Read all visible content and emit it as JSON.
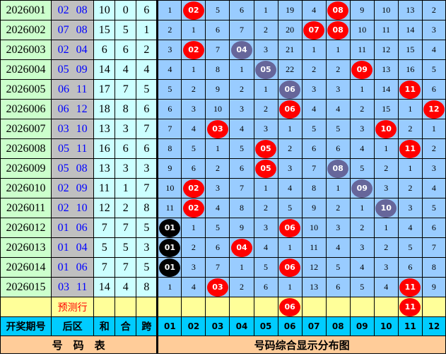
{
  "colors": {
    "red": "#ff0000",
    "gray": "#66669a",
    "black": "#000000"
  },
  "rows": [
    {
      "period": "2026001",
      "back": "02 08",
      "sum": "10",
      "he": "0",
      "kua": "6",
      "cells": [
        "1",
        {
          "n": "02",
          "c": "red"
        },
        "5",
        "6",
        "1",
        "19",
        "4",
        {
          "n": "08",
          "c": "red"
        },
        "9",
        "10",
        "13",
        "2"
      ]
    },
    {
      "period": "2026002",
      "back": "07 08",
      "sum": "15",
      "he": "5",
      "kua": "1",
      "cells": [
        "2",
        "1",
        "6",
        "7",
        "2",
        "20",
        {
          "n": "07",
          "c": "red"
        },
        {
          "n": "08",
          "c": "red"
        },
        "10",
        "11",
        "14",
        "3"
      ]
    },
    {
      "period": "2026003",
      "back": "02 04",
      "sum": "6",
      "he": "6",
      "kua": "2",
      "cells": [
        "3",
        {
          "n": "02",
          "c": "red"
        },
        "7",
        {
          "n": "04",
          "c": "gray"
        },
        "3",
        "21",
        "1",
        "1",
        "11",
        "12",
        "15",
        "4"
      ]
    },
    {
      "period": "2026004",
      "back": "05 09",
      "sum": "14",
      "he": "4",
      "kua": "4",
      "cells": [
        "4",
        "1",
        "8",
        "1",
        {
          "n": "05",
          "c": "gray"
        },
        "22",
        "2",
        "2",
        {
          "n": "09",
          "c": "red"
        },
        "13",
        "16",
        "5"
      ]
    },
    {
      "period": "2026005",
      "back": "06 11",
      "sum": "17",
      "he": "7",
      "kua": "5",
      "cells": [
        "5",
        "2",
        "9",
        "2",
        "1",
        {
          "n": "06",
          "c": "gray"
        },
        "3",
        "3",
        "1",
        "14",
        {
          "n": "11",
          "c": "red"
        },
        "6"
      ]
    },
    {
      "period": "2026006",
      "back": "06 12",
      "sum": "18",
      "he": "8",
      "kua": "6",
      "cells": [
        "6",
        "3",
        "10",
        "3",
        "2",
        {
          "n": "06",
          "c": "red"
        },
        "4",
        "4",
        "2",
        "15",
        "1",
        {
          "n": "12",
          "c": "red"
        }
      ]
    },
    {
      "period": "2026007",
      "back": "03 10",
      "sum": "13",
      "he": "3",
      "kua": "7",
      "cells": [
        "7",
        "4",
        {
          "n": "03",
          "c": "red"
        },
        "4",
        "3",
        "1",
        "5",
        "5",
        "3",
        {
          "n": "10",
          "c": "red"
        },
        "2",
        "1"
      ]
    },
    {
      "period": "2026008",
      "back": "05 11",
      "sum": "16",
      "he": "6",
      "kua": "6",
      "cells": [
        "8",
        "5",
        "1",
        "5",
        {
          "n": "05",
          "c": "red"
        },
        "2",
        "6",
        "6",
        "4",
        "1",
        {
          "n": "11",
          "c": "red"
        },
        "2"
      ]
    },
    {
      "period": "2026009",
      "back": "05 08",
      "sum": "13",
      "he": "3",
      "kua": "3",
      "cells": [
        "9",
        "6",
        "2",
        "6",
        {
          "n": "05",
          "c": "red"
        },
        "3",
        "7",
        {
          "n": "08",
          "c": "gray"
        },
        "5",
        "2",
        "1",
        "3"
      ]
    },
    {
      "period": "2026010",
      "back": "02 09",
      "sum": "11",
      "he": "1",
      "kua": "7",
      "cells": [
        "10",
        {
          "n": "02",
          "c": "red"
        },
        "3",
        "7",
        "1",
        "4",
        "8",
        "1",
        {
          "n": "09",
          "c": "gray"
        },
        "3",
        "2",
        "4"
      ]
    },
    {
      "period": "2026011",
      "back": "02 10",
      "sum": "12",
      "he": "2",
      "kua": "8",
      "cells": [
        "11",
        {
          "n": "02",
          "c": "red"
        },
        "4",
        "8",
        "2",
        "5",
        "9",
        "2",
        "1",
        {
          "n": "10",
          "c": "gray"
        },
        "3",
        "5"
      ]
    },
    {
      "period": "2026012",
      "back": "01 06",
      "sum": "7",
      "he": "7",
      "kua": "5",
      "cells": [
        {
          "n": "01",
          "c": "black"
        },
        "1",
        "5",
        "9",
        "3",
        {
          "n": "06",
          "c": "red"
        },
        "10",
        "3",
        "2",
        "1",
        "4",
        "6"
      ]
    },
    {
      "period": "2026013",
      "back": "01 04",
      "sum": "5",
      "he": "5",
      "kua": "3",
      "cells": [
        {
          "n": "01",
          "c": "black"
        },
        "2",
        "6",
        {
          "n": "04",
          "c": "red"
        },
        "4",
        "1",
        "11",
        "4",
        "3",
        "2",
        "5",
        "7"
      ]
    },
    {
      "period": "2026014",
      "back": "01 06",
      "sum": "7",
      "he": "7",
      "kua": "5",
      "cells": [
        {
          "n": "01",
          "c": "black"
        },
        "3",
        "7",
        "1",
        "5",
        {
          "n": "06",
          "c": "red"
        },
        "12",
        "5",
        "4",
        "3",
        "6",
        "8"
      ]
    },
    {
      "period": "2026015",
      "back": "03 11",
      "sum": "14",
      "he": "4",
      "kua": "8",
      "cells": [
        "1",
        "4",
        {
          "n": "03",
          "c": "red"
        },
        "2",
        "6",
        "1",
        "13",
        "6",
        "5",
        "4",
        {
          "n": "11",
          "c": "red"
        },
        "9"
      ]
    }
  ],
  "prediction": {
    "label": "预测行",
    "cells": [
      "",
      "",
      "",
      "",
      "",
      {
        "n": "06",
        "c": "red"
      },
      "",
      "",
      "",
      "",
      {
        "n": "11",
        "c": "red"
      },
      ""
    ]
  },
  "header": {
    "period": "开奖期号",
    "back": "后区",
    "sum": "和",
    "he": "合",
    "kua": "跨",
    "numbers": [
      "01",
      "02",
      "03",
      "04",
      "05",
      "06",
      "07",
      "08",
      "09",
      "10",
      "11",
      "12"
    ]
  },
  "footer": {
    "left": "号　码　表",
    "right": "号码综合显示分布图"
  }
}
